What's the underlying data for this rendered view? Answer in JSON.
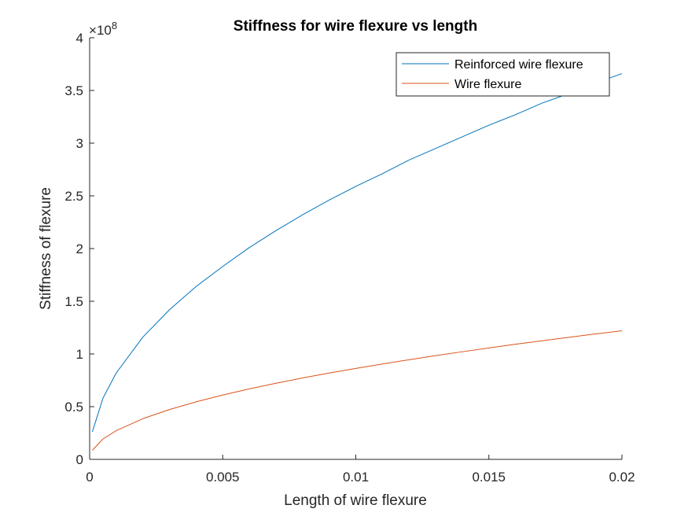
{
  "chart_data": {
    "type": "line",
    "title": "Stiffness for wire flexure vs length",
    "xlabel": "Length of wire flexure",
    "ylabel": "Stiffness of flexure",
    "y_exponent_base": "10",
    "y_exponent_power": "8",
    "xlim": [
      0,
      0.02
    ],
    "ylim": [
      0,
      400000000
    ],
    "x_ticks": [
      0,
      0.005,
      0.01,
      0.015,
      0.02
    ],
    "x_tick_labels": [
      "0",
      "0.005",
      "0.01",
      "0.015",
      "0.02"
    ],
    "y_ticks": [
      0,
      50000000,
      100000000,
      150000000,
      200000000,
      250000000,
      300000000,
      350000000,
      400000000
    ],
    "y_tick_labels": [
      "0",
      "0.5",
      "1",
      "1.5",
      "2",
      "2.5",
      "3",
      "3.5",
      "4"
    ],
    "grid": false,
    "legend_position": "top-right",
    "series": [
      {
        "name": "Reinforced wire flexure",
        "color": "#0072BD",
        "x": [
          0.0001,
          0.0005,
          0.001,
          0.002,
          0.003,
          0.004,
          0.005,
          0.006,
          0.007,
          0.008,
          0.009,
          0.01,
          0.011,
          0.012,
          0.013,
          0.014,
          0.015,
          0.016,
          0.017,
          0.018,
          0.019,
          0.02
        ],
        "values": [
          26000000,
          58000000,
          82000000,
          116000000,
          142000000,
          164000000,
          183000000,
          201000000,
          217000000,
          232000000,
          246000000,
          259000000,
          271000000,
          284000000,
          295000000,
          306000000,
          317000000,
          327000000,
          338000000,
          347000000,
          357000000,
          366000000
        ]
      },
      {
        "name": "Wire flexure",
        "color": "#D95319",
        "x": [
          0.0001,
          0.0005,
          0.001,
          0.002,
          0.003,
          0.004,
          0.005,
          0.006,
          0.007,
          0.008,
          0.009,
          0.01,
          0.011,
          0.012,
          0.013,
          0.014,
          0.015,
          0.016,
          0.017,
          0.018,
          0.019,
          0.02
        ],
        "values": [
          8600000,
          19300000,
          27300000,
          38600000,
          47300000,
          54600000,
          61000000,
          66900000,
          72200000,
          77200000,
          81900000,
          86300000,
          90500000,
          94500000,
          98400000,
          102100000,
          105700000,
          109200000,
          112500000,
          115800000,
          119000000,
          122000000
        ]
      }
    ]
  }
}
